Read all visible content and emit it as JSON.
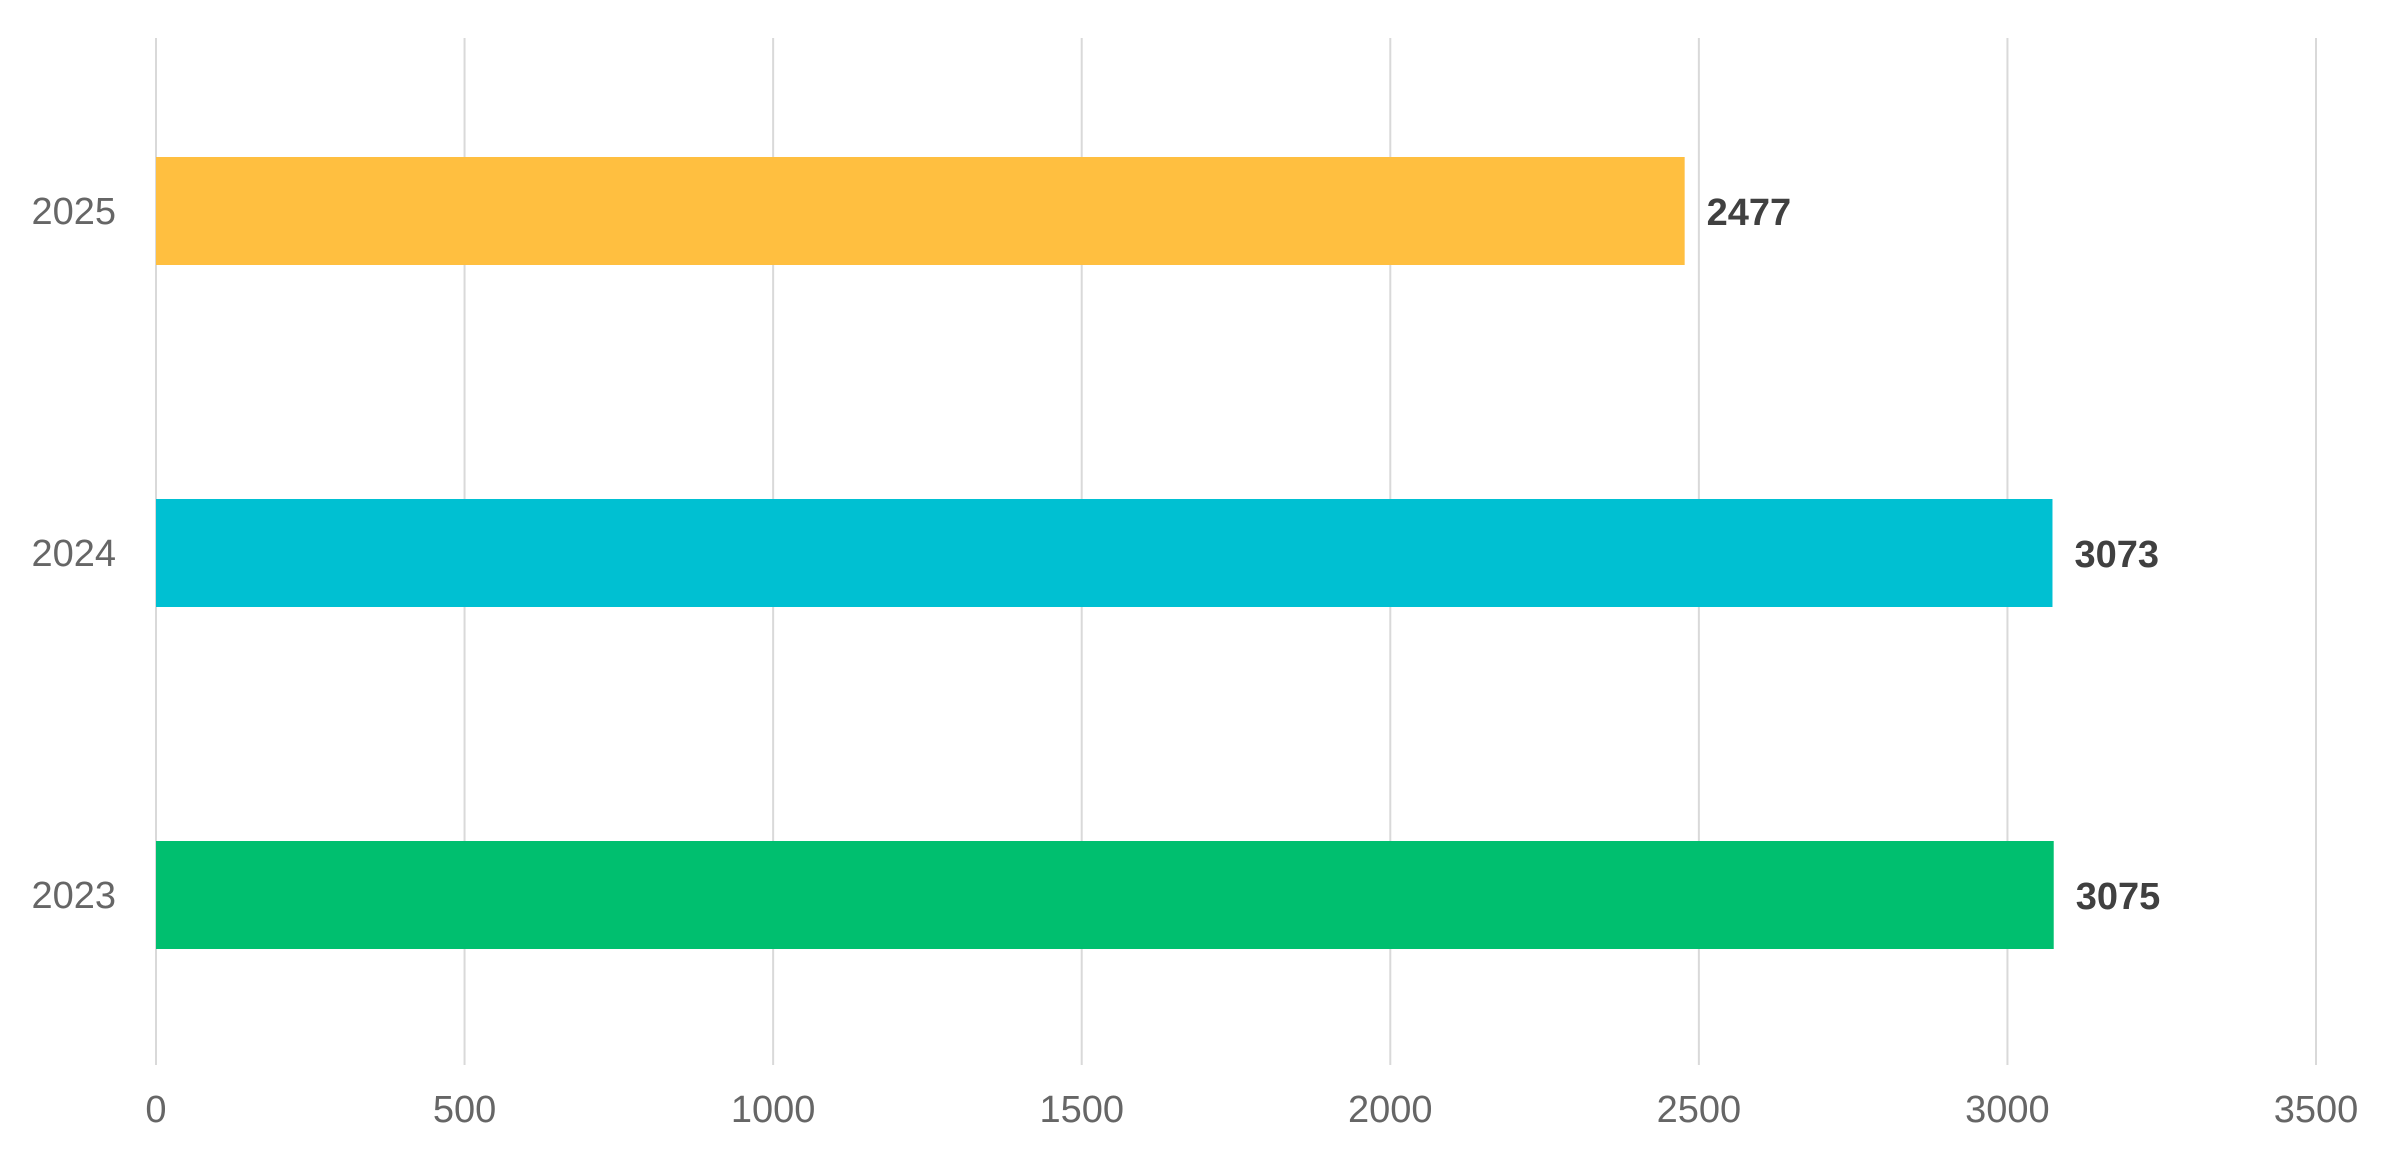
{
  "chart_data": {
    "type": "bar",
    "orientation": "horizontal",
    "title": "",
    "xlabel": "",
    "ylabel": "",
    "categories": [
      "2025",
      "2024",
      "2023"
    ],
    "values": [
      2477,
      3073,
      3075
    ],
    "colors": [
      "#FFBF40",
      "#00C0D2",
      "#00BF6F"
    ],
    "xlim": [
      0,
      3500
    ],
    "x_ticks": [
      0,
      500,
      1000,
      1500,
      2000,
      2500,
      3000,
      3500
    ],
    "grid": "vertical",
    "legend": "none",
    "data_labels": true
  }
}
